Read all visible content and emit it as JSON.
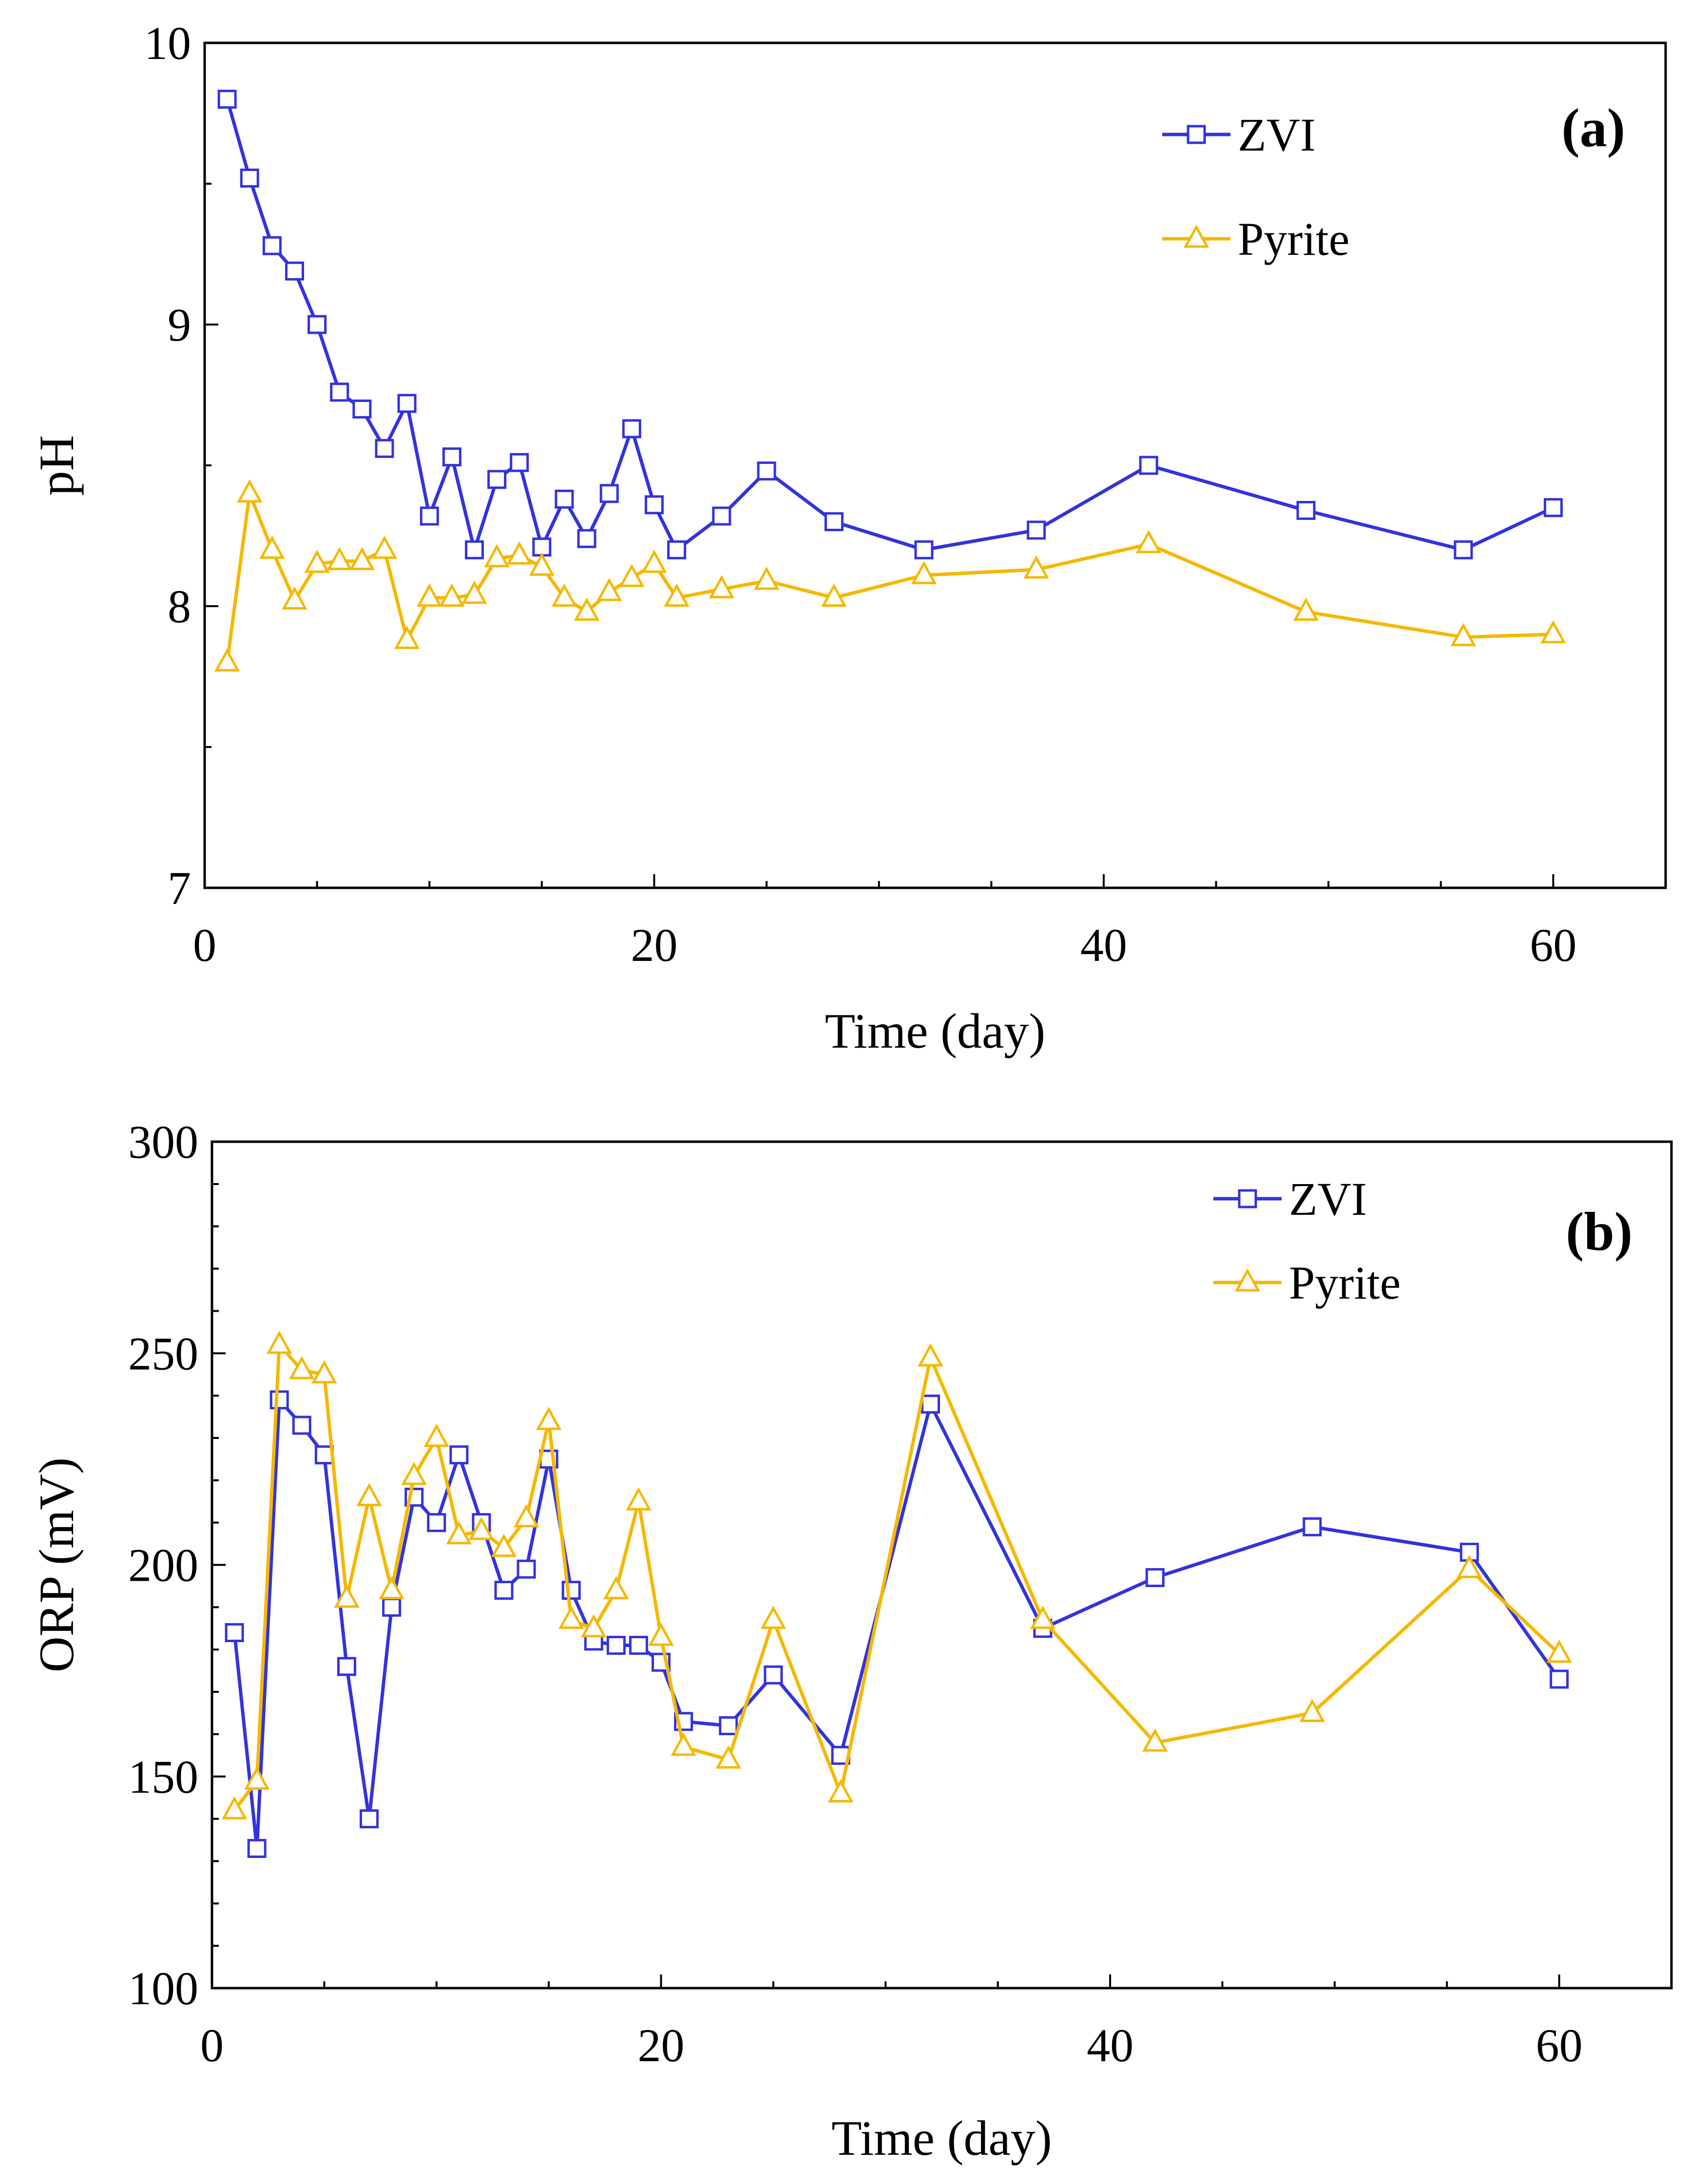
{
  "chart_data": [
    {
      "type": "line",
      "panel_label": "(a)",
      "title": "",
      "xlabel": "Time (day)",
      "ylabel": "pH",
      "xlim": [
        0,
        65
      ],
      "ylim": [
        7,
        10
      ],
      "xticks": [
        0,
        20,
        40,
        60
      ],
      "xtick_labels": [
        "0",
        "20",
        "40",
        "60"
      ],
      "yticks": [
        7,
        8,
        9,
        10
      ],
      "ytick_labels": [
        "7",
        "8",
        "9",
        "10"
      ],
      "x_minor_step": 5,
      "y_minor_step": 0.5,
      "grid": false,
      "legend_position": "top-right",
      "series": [
        {
          "name": "ZVI",
          "color": "#3333dd",
          "marker": "square",
          "x": [
            1,
            2,
            3,
            4,
            5,
            6,
            7,
            8,
            9,
            10,
            11,
            12,
            13,
            14,
            15,
            16,
            17,
            18,
            19,
            20,
            21,
            23,
            25,
            28,
            32,
            37,
            42,
            49,
            56,
            60
          ],
          "values": [
            9.8,
            9.52,
            9.28,
            9.19,
            9.0,
            8.76,
            8.7,
            8.56,
            8.72,
            8.32,
            8.53,
            8.2,
            8.45,
            8.51,
            8.21,
            8.38,
            8.24,
            8.4,
            8.63,
            8.36,
            8.2,
            8.32,
            8.48,
            8.3,
            8.2,
            8.27,
            8.5,
            8.34,
            8.2,
            8.35
          ]
        },
        {
          "name": "Pyrite",
          "color": "#f5b800",
          "marker": "triangle",
          "x": [
            1,
            2,
            3,
            4,
            5,
            6,
            7,
            8,
            9,
            10,
            11,
            12,
            13,
            14,
            15,
            16,
            17,
            18,
            19,
            20,
            21,
            23,
            25,
            28,
            32,
            37,
            42,
            49,
            56,
            60
          ],
          "values": [
            7.8,
            8.4,
            8.2,
            8.02,
            8.15,
            8.16,
            8.16,
            8.2,
            7.88,
            8.03,
            8.03,
            8.04,
            8.17,
            8.18,
            8.14,
            8.03,
            7.98,
            8.05,
            8.1,
            8.15,
            8.03,
            8.06,
            8.09,
            8.03,
            8.11,
            8.13,
            8.22,
            7.98,
            7.89,
            7.9
          ]
        }
      ]
    },
    {
      "type": "line",
      "panel_label": "(b)",
      "title": "",
      "xlabel": "Time (day)",
      "ylabel": "ORP (mV)",
      "xlim": [
        0,
        65
      ],
      "ylim": [
        100,
        300
      ],
      "xticks": [
        0,
        20,
        40,
        60
      ],
      "xtick_labels": [
        "0",
        "20",
        "40",
        "60"
      ],
      "yticks": [
        100,
        150,
        200,
        250,
        300
      ],
      "ytick_labels": [
        "100",
        "150",
        "200",
        "250",
        "300"
      ],
      "x_minor_step": 5,
      "y_minor_step": 10,
      "grid": false,
      "legend_position": "top-right",
      "series": [
        {
          "name": "ZVI",
          "color": "#3333dd",
          "marker": "square",
          "x": [
            1,
            2,
            3,
            4,
            5,
            6,
            7,
            8,
            9,
            10,
            11,
            12,
            13,
            14,
            15,
            16,
            17,
            18,
            19,
            20,
            21,
            23,
            25,
            28,
            32,
            37,
            42,
            49,
            56,
            60
          ],
          "values": [
            184,
            133,
            239,
            233,
            226,
            176,
            140,
            190,
            216,
            210,
            226,
            210,
            194,
            199,
            225,
            194,
            182,
            181,
            181,
            177,
            163,
            162,
            174,
            155,
            238,
            185,
            197,
            209,
            203,
            173
          ]
        },
        {
          "name": "Pyrite",
          "color": "#f5b800",
          "marker": "triangle",
          "x": [
            1,
            2,
            3,
            4,
            5,
            6,
            7,
            8,
            9,
            10,
            11,
            12,
            13,
            14,
            15,
            16,
            17,
            18,
            19,
            20,
            21,
            23,
            25,
            28,
            32,
            37,
            42,
            49,
            56,
            60
          ],
          "values": [
            142,
            149,
            252,
            246,
            245,
            192,
            216,
            194,
            221,
            230,
            207,
            208,
            204,
            211,
            234,
            187,
            185,
            194,
            215,
            183,
            157,
            154,
            187,
            146,
            249,
            187,
            158,
            165,
            199,
            179
          ]
        }
      ]
    }
  ]
}
